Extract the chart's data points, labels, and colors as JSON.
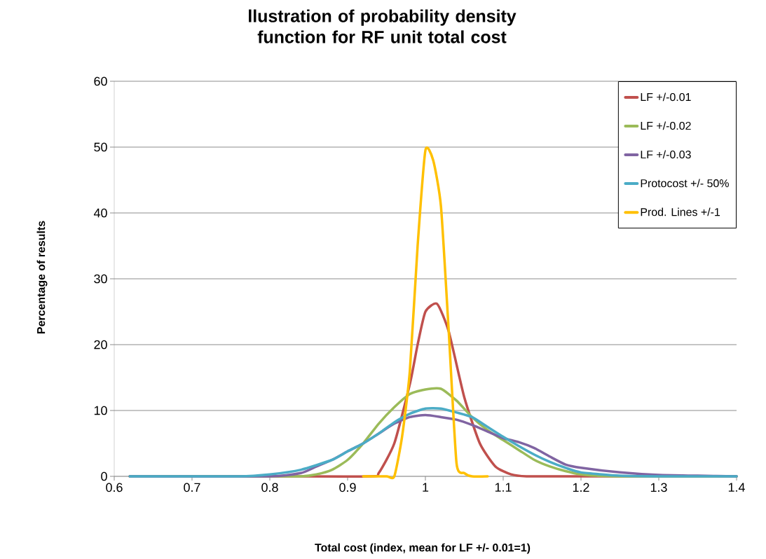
{
  "chart_data": {
    "type": "line",
    "title": "llustration of probability density function for RF unit total cost",
    "xlabel": "Total cost (index, mean for LF +/- 0.01=1)",
    "ylabel": "Percentage of results",
    "xlim": [
      0.6,
      1.4
    ],
    "xticks": [
      0.6,
      0.7,
      0.8,
      0.9,
      1,
      1.1,
      1.2,
      1.3,
      1.4
    ],
    "ylim": [
      0,
      60
    ],
    "yticks": [
      0,
      10,
      20,
      30,
      40,
      50,
      60
    ],
    "grid": "y",
    "legend": "top right",
    "marker": "none",
    "line_style": "solid",
    "series": [
      {
        "name": "LF +/-0.01",
        "color": "#c0504d",
        "x": [
          0.62,
          0.8,
          0.93,
          0.94,
          0.96,
          0.98,
          0.99,
          1.0,
          1.015,
          1.03,
          1.05,
          1.07,
          1.09,
          1.11,
          1.13,
          1.2,
          1.4
        ],
        "values": [
          0,
          0,
          0,
          0.5,
          5,
          14,
          20,
          25,
          26.2,
          22,
          12,
          5,
          1.5,
          0.3,
          0,
          0,
          0
        ]
      },
      {
        "name": "LF +/-0.02",
        "color": "#9bbb59",
        "x": [
          0.62,
          0.8,
          0.84,
          0.86,
          0.88,
          0.9,
          0.92,
          0.94,
          0.96,
          0.98,
          1.0,
          1.02,
          1.04,
          1.06,
          1.08,
          1.1,
          1.12,
          1.14,
          1.16,
          1.18,
          1.2,
          1.22,
          1.25,
          1.4
        ],
        "values": [
          0,
          0,
          0,
          0.3,
          1,
          2.5,
          5,
          8,
          10.5,
          12.5,
          13.2,
          13.3,
          11.5,
          9,
          7,
          5.5,
          4,
          2.5,
          1.5,
          0.8,
          0.3,
          0.1,
          0,
          0
        ]
      },
      {
        "name": "LF +/-0.03",
        "color": "#8064a2",
        "x": [
          0.62,
          0.8,
          0.84,
          0.86,
          0.88,
          0.9,
          0.92,
          0.94,
          0.96,
          0.98,
          1.0,
          1.02,
          1.04,
          1.06,
          1.08,
          1.1,
          1.12,
          1.14,
          1.16,
          1.18,
          1.2,
          1.25,
          1.3,
          1.35,
          1.4
        ],
        "values": [
          0,
          0,
          0.5,
          1.5,
          2.5,
          3.8,
          5,
          6.5,
          8,
          9,
          9.3,
          9,
          8.6,
          7.8,
          6.8,
          5.8,
          5.2,
          4.3,
          3,
          1.8,
          1.3,
          0.6,
          0.2,
          0.1,
          0
        ]
      },
      {
        "name": "Protocost +/- 50%",
        "color": "#4bacc6",
        "x": [
          0.62,
          0.76,
          0.8,
          0.84,
          0.88,
          0.9,
          0.92,
          0.94,
          0.96,
          0.98,
          1.0,
          1.02,
          1.04,
          1.06,
          1.08,
          1.1,
          1.12,
          1.14,
          1.16,
          1.18,
          1.2,
          1.25,
          1.3,
          1.4
        ],
        "values": [
          0,
          0,
          0.3,
          1,
          2.5,
          3.8,
          5,
          6.5,
          8.2,
          9.5,
          10.3,
          10.3,
          9.7,
          9,
          7.5,
          6,
          4.6,
          3.3,
          2.2,
          1.3,
          0.6,
          0.1,
          0,
          0
        ]
      },
      {
        "name": "Prod. Lines +/-1",
        "color": "#ffc000",
        "x": [
          0.92,
          0.95,
          0.96,
          0.97,
          0.98,
          0.99,
          1.0,
          1.01,
          1.02,
          1.03,
          1.04,
          1.05,
          1.06,
          1.08
        ],
        "values": [
          0,
          0,
          0,
          6,
          16,
          35,
          49.5,
          48,
          41,
          22,
          2,
          0.5,
          0,
          0
        ]
      }
    ]
  }
}
